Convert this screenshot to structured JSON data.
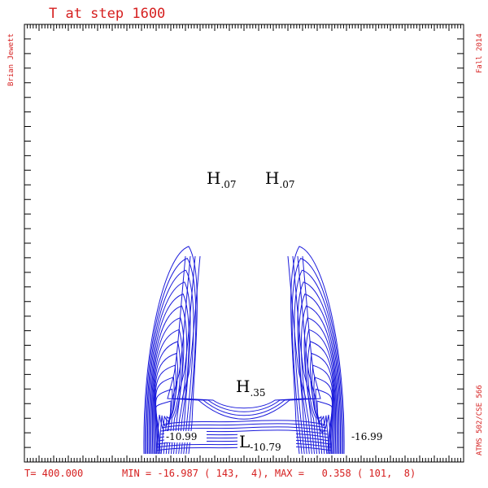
{
  "header": {
    "title": "T at step 1600",
    "author": "Brian Jewett",
    "term": "Fall 2014",
    "course": "ATMS 502/CSE 566"
  },
  "footer": {
    "time": "T= 400.000",
    "minmax": "MIN = -16.987 ( 143,  4), MAX =   0.358 ( 101,  8)"
  },
  "colors": {
    "text": "#d62020",
    "contour": "#1a1adb",
    "frame": "#000000",
    "label": "#000000"
  },
  "chart_data": {
    "type": "contour",
    "title": "T at step 1600",
    "field": "T",
    "step": 1600,
    "time": 400.0,
    "min": {
      "value": -16.987,
      "i": 143,
      "j": 4
    },
    "max": {
      "value": 0.358,
      "i": 101,
      "j": 8
    },
    "grid_size": [
      0,
      150
    ],
    "extrema_labels": [
      {
        "kind": "H",
        "value": ".07",
        "id": "h1"
      },
      {
        "kind": "H",
        "value": ".07",
        "id": "h2"
      },
      {
        "kind": "H",
        "value": ".35",
        "id": "h3"
      },
      {
        "kind": "L",
        "value": "-10.79",
        "id": "l1"
      }
    ],
    "contour_labels": [
      {
        "text": "-10.99",
        "id": "c1"
      },
      {
        "text": "-16.99",
        "id": "c2"
      }
    ]
  }
}
